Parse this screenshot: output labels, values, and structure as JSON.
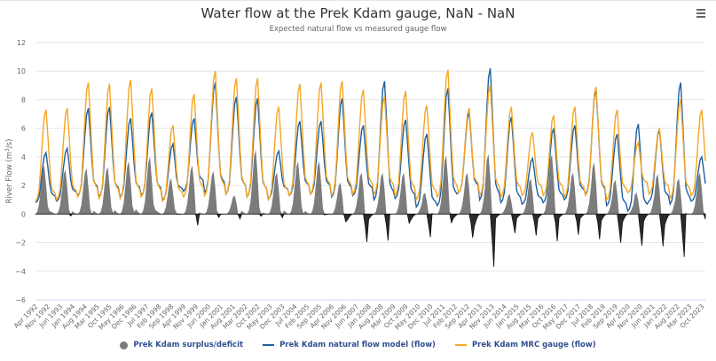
{
  "header": {
    "title": "Water flow at the Prek Kdam gauge, NaN - NaN",
    "subtitle": "Expected natural flow vs measured gauge flow",
    "menu_icon": "hamburger-menu-icon"
  },
  "legend": [
    {
      "label": "Prek Kdam surplus/deficit",
      "symbol": "circle",
      "color": "#7c7c7c"
    },
    {
      "label": "Prek Kdam natural flow model (flow)",
      "symbol": "line",
      "color": "#1f5fa0"
    },
    {
      "label": "Prek Kdam MRC gauge (flow)",
      "symbol": "line",
      "color": "#f5a623"
    }
  ],
  "colors": {
    "mrc": "#f5a623",
    "natural": "#1f5fa0",
    "surplus": "#7c7c7c",
    "deficit": "#2b2b2b",
    "grid": "#e6e6e6",
    "axis_label": "#666666"
  },
  "chart_data": {
    "type": "area",
    "title": "Water flow at the Prek Kdam gauge, NaN - NaN",
    "subtitle": "Expected natural flow vs measured gauge flow",
    "xlabel": "",
    "ylabel": "River Flow (m³/s)",
    "ylabel_main": "River Flow (m",
    "ylabel_sup": "3",
    "ylabel_tail": "/s)",
    "ylim": [
      -6,
      12
    ],
    "yticks": [
      12,
      10,
      8,
      6,
      4,
      2,
      0,
      -2,
      -4,
      -6
    ],
    "grid": true,
    "legend_position": "bottom",
    "x_start": "Apr 1992",
    "x_end": "Dec 2023",
    "frequency": "monthly",
    "x_tick_labels": [
      "Apr 1992",
      "Nov 1992",
      "Jun 1993",
      "Jan 1994",
      "Aug 1994",
      "Mar 1995",
      "Oct 1995",
      "May 1996",
      "Dec 1996",
      "Jul 1997",
      "Feb 1998",
      "Sep 1998",
      "Apr 1999",
      "Nov 1999",
      "Jun 2000",
      "Jan 2001",
      "Aug 2001",
      "Mar 2002",
      "Oct 2002",
      "May 2003",
      "Dec 2003",
      "Jul 2004",
      "Feb 2005",
      "Sep 2005",
      "Apr 2006",
      "Nov 2006",
      "Jun 2007",
      "Jan 2008",
      "Aug 2008",
      "Mar 2009",
      "Oct 2009",
      "May 2010",
      "Dec 2010",
      "Jul 2011",
      "Feb 2012",
      "Sep 2012",
      "Apr 2013",
      "Nov 2013",
      "Jun 2014",
      "Jan 2015",
      "Aug 2015",
      "Mar 2016",
      "Oct 2016",
      "May 2017",
      "Dec 2017",
      "Jul 2018",
      "Feb 2019",
      "Sep 2019",
      "Apr 2020",
      "Nov 2020",
      "Jun 2021",
      "Jan 2022",
      "Aug 2022",
      "Mar 2023",
      "Oct 2023"
    ],
    "years": [
      1992,
      1993,
      1994,
      1995,
      1996,
      1997,
      1998,
      1999,
      2000,
      2001,
      2002,
      2003,
      2004,
      2005,
      2006,
      2007,
      2008,
      2009,
      2010,
      2011,
      2012,
      2013,
      2014,
      2015,
      2016,
      2017,
      2018,
      2019,
      2020,
      2021,
      2022,
      2023
    ],
    "series": [
      {
        "name": "Prek Kdam MRC gauge (flow)",
        "annual_peak": [
          7.3,
          7.4,
          9.2,
          9.1,
          9.4,
          8.8,
          6.2,
          8.4,
          10.0,
          9.5,
          9.5,
          7.5,
          9.1,
          9.2,
          9.3,
          8.7,
          8.2,
          8.6,
          7.6,
          10.1,
          7.4,
          9.0,
          7.5,
          5.7,
          6.9,
          7.5,
          8.9,
          7.3,
          5.0,
          6.0,
          8.0,
          7.3
        ],
        "annual_min": [
          0.9,
          1.0,
          1.2,
          1.1,
          1.1,
          1.2,
          0.9,
          1.2,
          1.3,
          1.4,
          1.2,
          1.0,
          1.3,
          1.4,
          1.3,
          1.4,
          1.4,
          1.3,
          1.0,
          1.2,
          1.5,
          1.3,
          1.2,
          1.3,
          1.3,
          1.2,
          1.3,
          1.0,
          1.5,
          1.4,
          1.1,
          1.3
        ]
      },
      {
        "name": "Prek Kdam natural flow model (flow)",
        "annual_peak": [
          4.3,
          4.6,
          7.4,
          7.5,
          6.7,
          7.1,
          4.9,
          6.7,
          9.2,
          8.2,
          8.1,
          4.4,
          6.5,
          6.5,
          8.1,
          6.2,
          9.3,
          6.6,
          5.6,
          8.8,
          7.1,
          10.2,
          6.8,
          3.9,
          6.0,
          6.2,
          8.7,
          5.6,
          6.3,
          5.9,
          9.2,
          4.0
        ],
        "annual_min": [
          0.8,
          0.9,
          1.3,
          1.2,
          1.2,
          1.3,
          1.0,
          1.6,
          1.5,
          1.4,
          1.2,
          1.1,
          1.3,
          1.4,
          1.2,
          1.3,
          1.0,
          1.1,
          0.5,
          0.6,
          1.5,
          1.0,
          0.8,
          0.7,
          0.8,
          1.0,
          1.4,
          0.6,
          0.2,
          0.9,
          0.7,
          0.9
        ]
      },
      {
        "name": "Prek Kdam surplus/deficit",
        "annual_surplus_peak": [
          3.4,
          3.1,
          3.2,
          3.3,
          3.7,
          4.0,
          2.5,
          3.4,
          3.0,
          1.3,
          4.5,
          2.9,
          3.7,
          3.7,
          2.2,
          2.9,
          2.9,
          2.9,
          1.5,
          4.1,
          2.9,
          4.2,
          1.4,
          2.5,
          4.2,
          2.9,
          3.6,
          2.4,
          1.5,
          2.8,
          2.5,
          2.9
        ],
        "annual_deficit_min": [
          -0.2,
          -0.5,
          -0.4,
          -0.3,
          -0.3,
          -0.2,
          -0.2,
          -1.2,
          -0.6,
          -0.5,
          -0.7,
          -0.6,
          -0.4,
          -0.5,
          -0.8,
          -2.3,
          -2.2,
          -1.0,
          -1.8,
          -1.1,
          -2.0,
          -4.2,
          -1.5,
          -1.8,
          -2.4,
          -1.8,
          -2.2,
          -2.3,
          -2.4,
          -2.6,
          -3.3,
          -0.7
        ]
      }
    ]
  }
}
